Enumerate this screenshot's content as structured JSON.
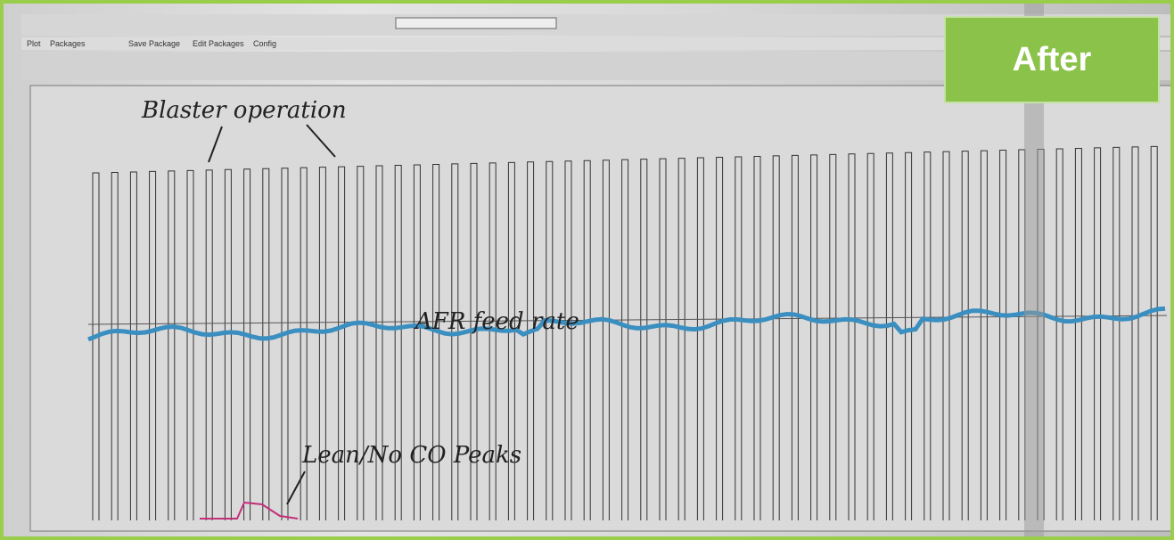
{
  "badge": "After",
  "tabs": [
    "Plot",
    "Packages",
    "Save Package",
    "Edit Packages",
    "Config"
  ],
  "annotations": {
    "blaster": "Blaster operation",
    "feed": "AFR feed rate",
    "peaks": "Lean/No CO Peaks"
  }
}
